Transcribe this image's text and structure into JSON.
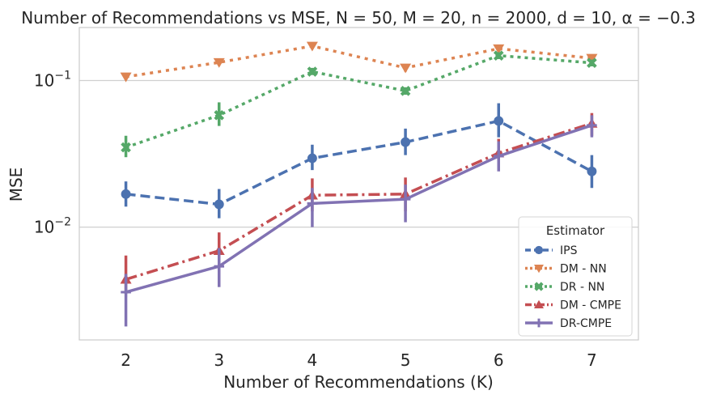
{
  "chart_data": {
    "type": "line",
    "title": "Number of Recommendations vs MSE, N = 50, M = 20, n = 2000, d = 10, α = −0.3",
    "xlabel": "Number of Recommendations (K)",
    "ylabel": "MSE",
    "x": [
      2,
      3,
      4,
      5,
      6,
      7
    ],
    "xlim": [
      1.5,
      7.5
    ],
    "y_scale": "log",
    "ylim": [
      0.0017,
      0.23
    ],
    "y_ticks": [
      {
        "value": 0.1,
        "base": "10",
        "exp": "−1"
      },
      {
        "value": 0.01,
        "base": "10",
        "exp": "−2"
      }
    ],
    "grid": "horizontal",
    "legend": {
      "title": "Estimator",
      "position": "lower-right"
    },
    "series": [
      {
        "name": "IPS",
        "color": "#4c72b0",
        "marker": "circle",
        "dash": "12,6",
        "values": [
          0.0168,
          0.0143,
          0.0295,
          0.038,
          0.053,
          0.024
        ],
        "err_low": [
          0.0138,
          0.0115,
          0.0245,
          0.031,
          0.041,
          0.0185
        ],
        "err_high": [
          0.0205,
          0.0182,
          0.0365,
          0.047,
          0.07,
          0.031
        ]
      },
      {
        "name": "DM - NN",
        "color": "#dd8452",
        "marker": "triangle-down",
        "dash": "4,6",
        "values": [
          0.106,
          0.133,
          0.172,
          0.122,
          0.165,
          0.142
        ],
        "err_low": [
          0.101,
          0.126,
          0.164,
          0.115,
          0.157,
          0.135
        ],
        "err_high": [
          0.111,
          0.14,
          0.18,
          0.129,
          0.173,
          0.149
        ]
      },
      {
        "name": "DR - NN",
        "color": "#55a868",
        "marker": "x",
        "dash": "4,5",
        "values": [
          0.035,
          0.058,
          0.115,
          0.085,
          0.148,
          0.132
        ],
        "err_low": [
          0.03,
          0.049,
          0.109,
          0.08,
          0.14,
          0.125
        ],
        "err_high": [
          0.042,
          0.071,
          0.122,
          0.09,
          0.156,
          0.139
        ]
      },
      {
        "name": "DM - CMPE",
        "color": "#c44e52",
        "marker": "triangle-up",
        "dash": "14,5,3,5",
        "values": [
          0.0044,
          0.0069,
          0.0165,
          0.0168,
          0.032,
          0.051
        ],
        "err_low": [
          0.0035,
          0.0054,
          0.0128,
          0.0128,
          0.025,
          0.042
        ],
        "err_high": [
          0.0064,
          0.0092,
          0.0215,
          0.0218,
          0.04,
          0.06
        ]
      },
      {
        "name": "DR-CMPE",
        "color": "#8172b3",
        "marker": "plus",
        "dash": "",
        "values": [
          0.0036,
          0.0054,
          0.0145,
          0.0155,
          0.0305,
          0.0495
        ],
        "err_low": [
          0.0021,
          0.0039,
          0.01,
          0.0108,
          0.024,
          0.041
        ],
        "err_high": [
          0.0048,
          0.0072,
          0.0185,
          0.0195,
          0.0385,
          0.058
        ]
      }
    ]
  }
}
